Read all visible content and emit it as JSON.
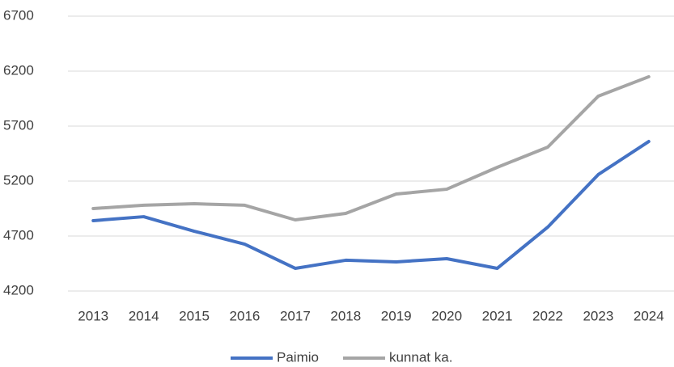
{
  "chart_data": {
    "type": "line",
    "categories": [
      "2013",
      "2014",
      "2015",
      "2016",
      "2017",
      "2018",
      "2019",
      "2020",
      "2021",
      "2022",
      "2023",
      "2024"
    ],
    "series": [
      {
        "name": "Paimio",
        "color": "#4472c4",
        "values": [
          4840,
          4876,
          4744,
          4626,
          4406,
          4480,
          4465,
          4494,
          4406,
          4781,
          5259,
          5560
        ]
      },
      {
        "name": "kunnat ka.",
        "color": "#a5a5a5",
        "values": [
          4950,
          4980,
          4994,
          4980,
          4847,
          4906,
          5082,
          5126,
          5325,
          5509,
          5972,
          6149
        ]
      }
    ],
    "ylim": [
      4200,
      6700
    ],
    "yticks": [
      4200,
      4700,
      5200,
      5700,
      6200,
      6700
    ],
    "grid": true,
    "legend": "bottom"
  }
}
